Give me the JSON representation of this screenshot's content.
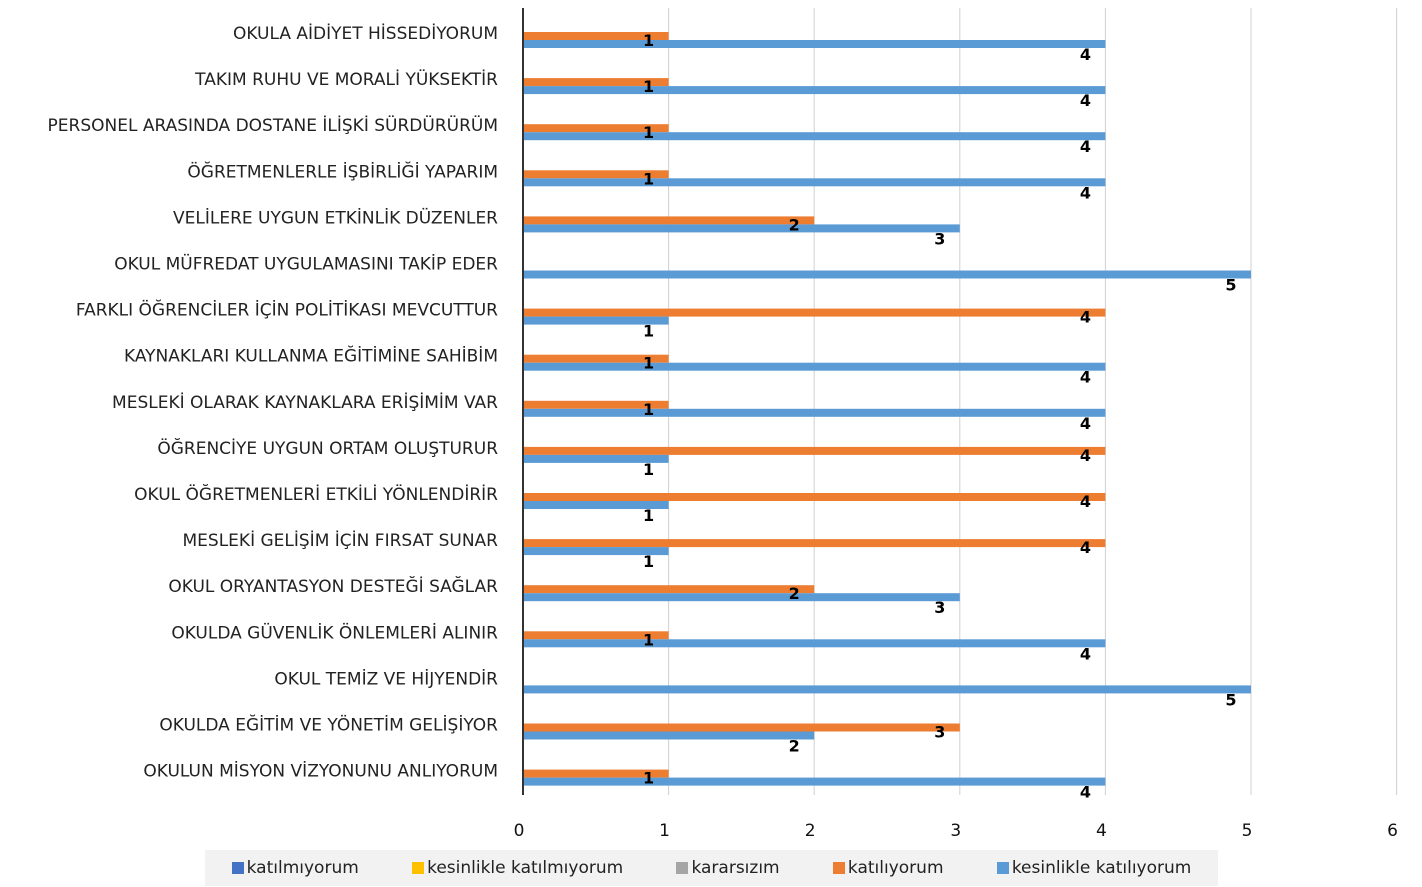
{
  "chart_data": {
    "type": "bar",
    "orientation": "horizontal",
    "title": "",
    "xlabel": "",
    "ylabel": "",
    "xlim": [
      0,
      6
    ],
    "x_ticks": [
      "0",
      "1",
      "2",
      "3",
      "4",
      "5",
      "6"
    ],
    "grid": true,
    "legend_position": "bottom",
    "categories": [
      "OKULA AİDİYET  HİSSEDİYORUM",
      "TAKIM RUHU VE MORALİ YÜKSEKTİR",
      "PERSONEL  ARASINDA  DOSTANE  İLİŞKİ SÜRDÜRÜRÜM",
      "ÖĞRETMENLERLE   İŞBİRLİĞİ YAPARIM",
      "VELİLERE  UYGUN ETKİNLİK DÜZENLER",
      "OKUL MÜFREDAT  UYGULAMASINI  TAKİP EDER",
      "FARKLI ÖĞRENCİLER  İÇİN POLİTİKASI MEVCUTTUR",
      "KAYNAKLARI  KULLANMA EĞİTİMİNE  SAHİBİM",
      "MESLEKİ  OLARAK KAYNAKLARA  ERİŞİMİM VAR",
      "ÖĞRENCİYE  UYGUN ORTAM  OLUŞTURUR",
      "OKUL ÖĞRETMENLERİ  ETKİLİ YÖNLENDİRİR",
      "MESLEKİ  GELİŞİM İÇİN FIRSAT SUNAR",
      "OKUL ORYANTASYON  DESTEĞİ SAĞLAR",
      "OKULDA GÜVENLİK ÖNLEMLERİ  ALINIR",
      "OKUL TEMİZ  VE HİJYENDİR",
      "OKULDA EĞİTİM  VE YÖNETİM  GELİŞİYOR",
      "OKULUN MİSYON  VİZYONUNU  ANLIYORUM"
    ],
    "series": [
      {
        "name": "katılmıyorum",
        "color": "#4472c4",
        "values": [
          0,
          0,
          0,
          0,
          0,
          0,
          0,
          0,
          0,
          0,
          0,
          0,
          0,
          0,
          0,
          0,
          0
        ]
      },
      {
        "name": "kesinlikle katılmıyorum",
        "color": "#ffc000",
        "values": [
          0,
          0,
          0,
          0,
          0,
          0,
          0,
          0,
          0,
          0,
          0,
          0,
          0,
          0,
          0,
          0,
          0
        ]
      },
      {
        "name": "kararsızım",
        "color": "#a5a5a5",
        "values": [
          0,
          0,
          0,
          0,
          0,
          0,
          0,
          0,
          0,
          0,
          0,
          0,
          0,
          0,
          0,
          0,
          0
        ]
      },
      {
        "name": "katılıyorum",
        "color": "#ed7d31",
        "values": [
          1,
          1,
          1,
          1,
          2,
          0,
          4,
          1,
          1,
          4,
          4,
          4,
          2,
          1,
          0,
          3,
          1
        ]
      },
      {
        "name": "kesinlikle katılıyorum",
        "color": "#5b9bd5",
        "values": [
          4,
          4,
          4,
          4,
          3,
          5,
          1,
          4,
          4,
          1,
          1,
          1,
          3,
          4,
          5,
          2,
          4
        ]
      }
    ]
  }
}
